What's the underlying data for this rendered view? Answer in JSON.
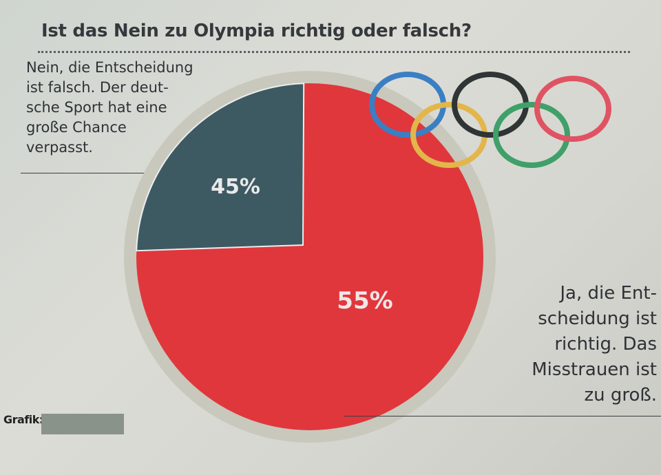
{
  "title": "Ist das Nein zu Olympia richtig oder falsch?",
  "chart_data": {
    "type": "pie",
    "title": "Ist das Nein zu Olympia richtig oder falsch?",
    "slices": [
      {
        "label_lines": [
          "Nein, die Entscheidung",
          "ist falsch. Der deut-",
          "sche Sport hat eine",
          "große Chance",
          "verpasst."
        ],
        "value": 45,
        "value_label": "45%",
        "color": "#3d5a63"
      },
      {
        "label_lines": [
          "Ja, die Ent-",
          "scheidung ist",
          "richtig. Das",
          "Misstrauen ist",
          "zu groß."
        ],
        "value": 55,
        "value_label": "55%",
        "color": "#e0373c"
      }
    ]
  },
  "rings_colors": [
    "#3a7fc4",
    "#e2b64a",
    "#2f3435",
    "#3fa06a",
    "#e05363"
  ],
  "credit": "Grafik:"
}
